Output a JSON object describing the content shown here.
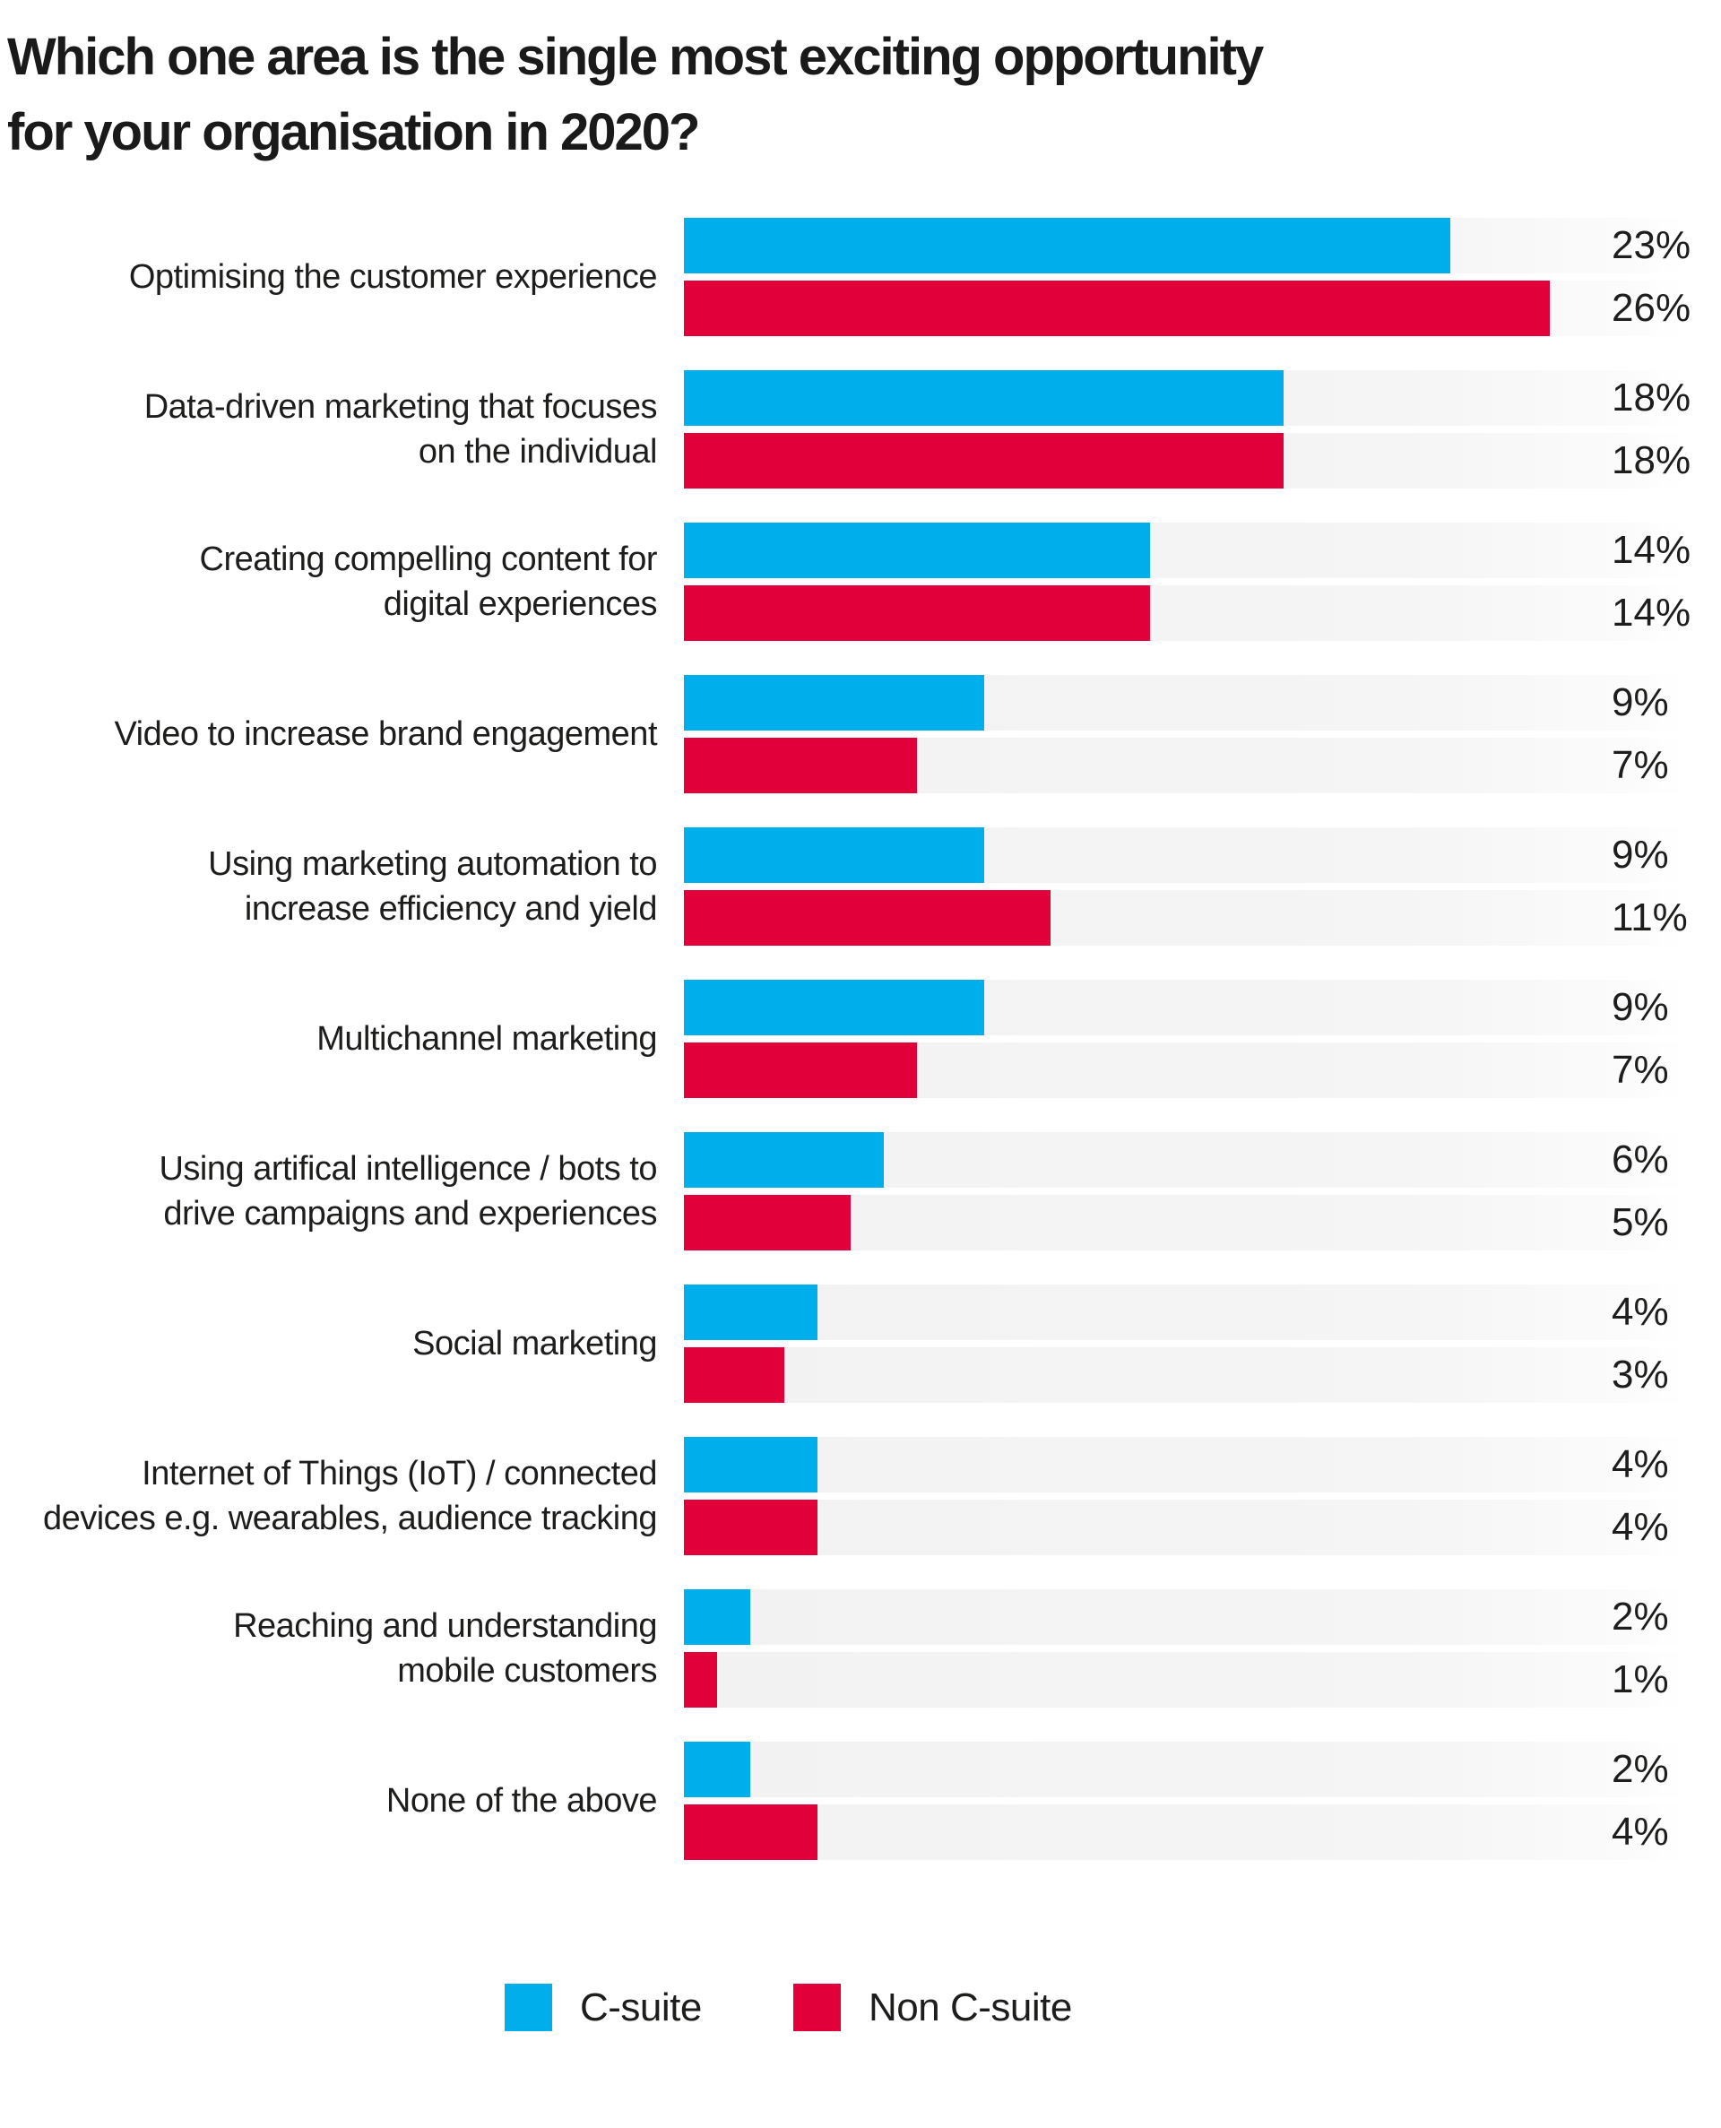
{
  "title": {
    "line1": "Which one area is the single most exciting opportunity",
    "line2": "for your organisation in 2020?"
  },
  "chart_data": {
    "type": "bar",
    "orientation": "horizontal",
    "grouped": true,
    "title": "Which one area is the single most exciting opportunity for your organisation in 2020?",
    "xlim": [
      0,
      30
    ],
    "grid": false,
    "value_suffix": "%",
    "track_color": "#f4f4f4",
    "label_color": "#1d1d1b",
    "legend_position": "bottom",
    "categories": [
      [
        "Optimising the customer experience"
      ],
      [
        "Data-driven marketing that focuses",
        "on the individual"
      ],
      [
        "Creating compelling content for",
        "digital experiences"
      ],
      [
        "Video to increase brand engagement"
      ],
      [
        "Using marketing automation to",
        "increase efficiency and yield"
      ],
      [
        "Multichannel marketing"
      ],
      [
        "Using artifical intelligence / bots to",
        "drive campaigns and experiences"
      ],
      [
        "Social marketing"
      ],
      [
        "Internet of Things (IoT) / connected",
        "devices e.g. wearables, audience tracking"
      ],
      [
        "Reaching and understanding",
        "mobile customers"
      ],
      [
        "None of the above"
      ]
    ],
    "series": [
      {
        "name": "C-suite",
        "color": "#00AEEB",
        "values": [
          23,
          18,
          14,
          9,
          9,
          9,
          6,
          4,
          4,
          2,
          2
        ]
      },
      {
        "name": "Non C-suite",
        "color": "#E2003B",
        "values": [
          26,
          18,
          14,
          7,
          11,
          7,
          5,
          3,
          4,
          1,
          4
        ]
      }
    ]
  },
  "legend": {
    "items": [
      {
        "label": "C-suite",
        "color": "#00AEEB"
      },
      {
        "label": "Non C-suite",
        "color": "#E2003B"
      }
    ]
  }
}
